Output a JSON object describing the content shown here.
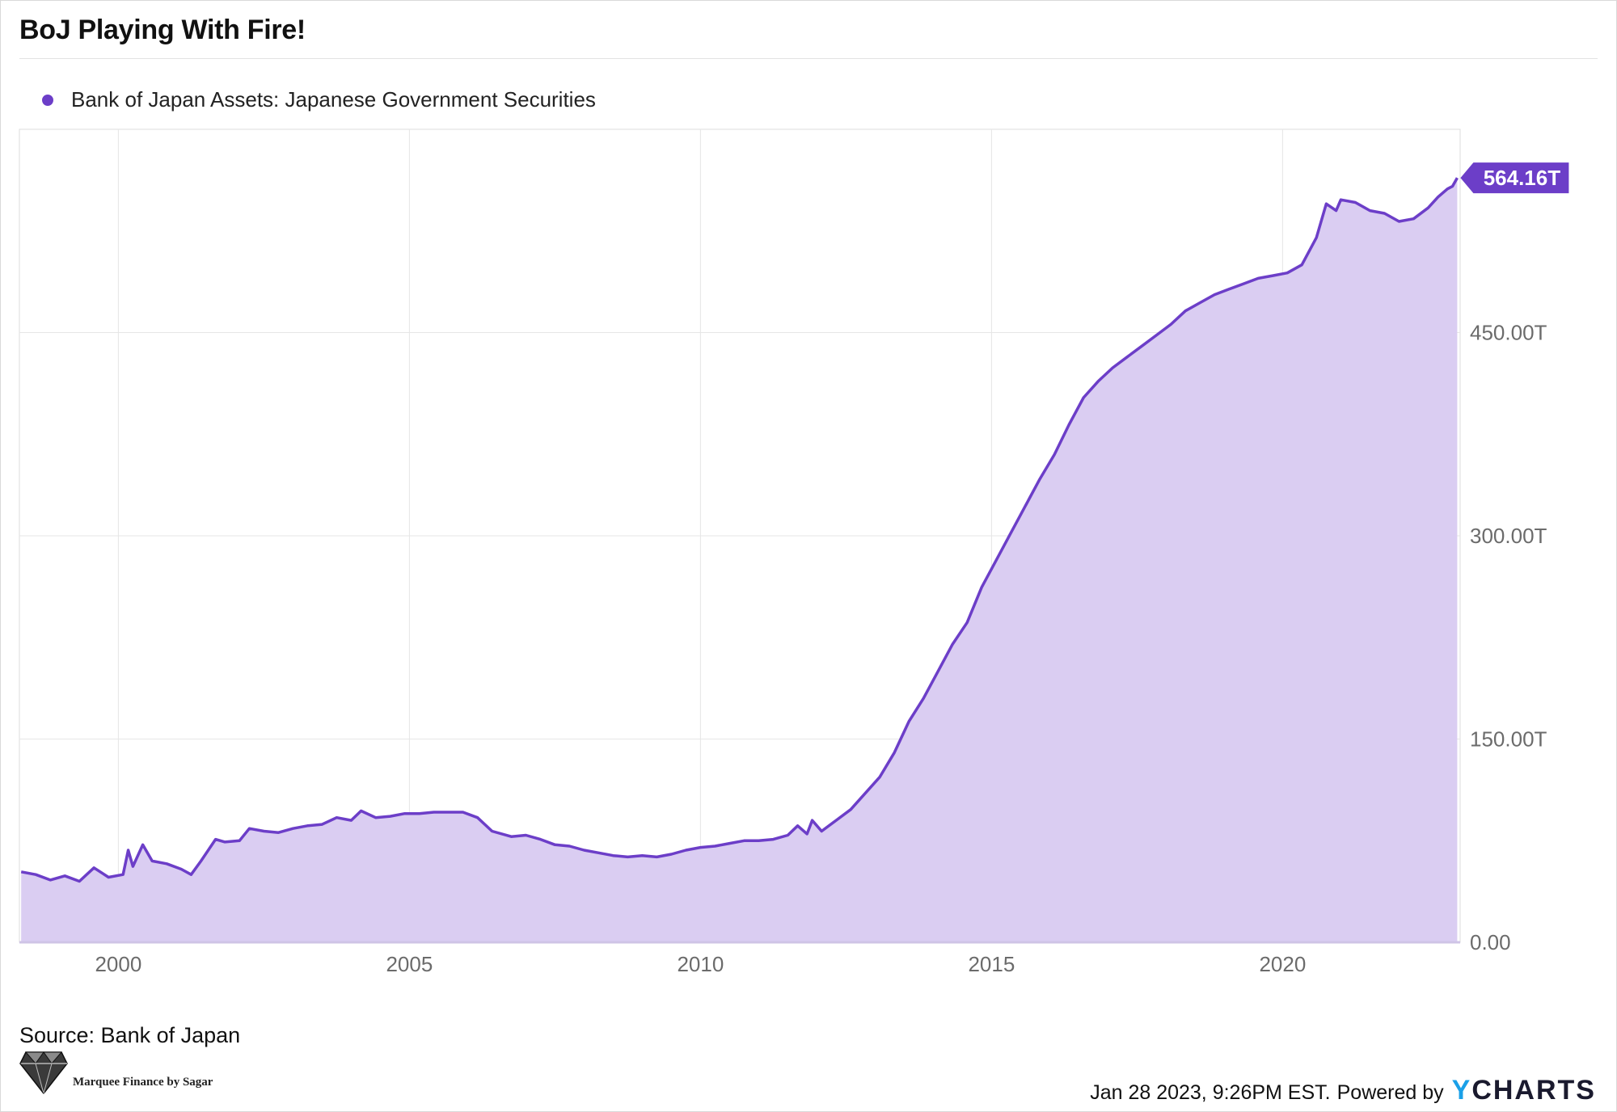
{
  "title": "BoJ Playing With Fire!",
  "source": "Source: Bank of Japan",
  "logo": {
    "text": "Marquee Finance by Sagar",
    "icon": "diamond-icon"
  },
  "footer": {
    "timestamp": "Jan 28 2023, 9:26PM EST.",
    "powered_by": "Powered by",
    "brand_y": "Y",
    "brand_rest": "CHARTS"
  },
  "colors": {
    "series": "#6c3ec8",
    "fill": "#dacdf2",
    "grid": "#e6e6e6",
    "axis_text": "#6b6b6b"
  },
  "chart_data": {
    "type": "area",
    "title": "BoJ Playing With Fire!",
    "xlabel": "",
    "ylabel": "",
    "grid": true,
    "legend_position": "top-left",
    "xlim": [
      1998.3,
      2023.05
    ],
    "ylim": [
      0,
      600
    ],
    "x_ticks": [
      2000,
      2005,
      2010,
      2015,
      2020
    ],
    "x_tick_labels": [
      "2000",
      "2005",
      "2010",
      "2015",
      "2020"
    ],
    "y_ticks": [
      0,
      150,
      300,
      450
    ],
    "y_tick_labels": [
      "0.00",
      "150.00T",
      "300.00T",
      "450.00T"
    ],
    "last_value_label": "564.16T",
    "series": [
      {
        "name": "Bank of Japan Assets: Japanese Government Securities",
        "unit": "T",
        "points": [
          [
            1998.33,
            52
          ],
          [
            1998.58,
            50
          ],
          [
            1998.83,
            46
          ],
          [
            1999.08,
            49
          ],
          [
            1999.33,
            45
          ],
          [
            1999.58,
            55
          ],
          [
            1999.83,
            48
          ],
          [
            2000.08,
            50
          ],
          [
            2000.17,
            68
          ],
          [
            2000.25,
            56
          ],
          [
            2000.42,
            72
          ],
          [
            2000.58,
            60
          ],
          [
            2000.83,
            58
          ],
          [
            2001.08,
            54
          ],
          [
            2001.25,
            50
          ],
          [
            2001.42,
            60
          ],
          [
            2001.67,
            76
          ],
          [
            2001.83,
            74
          ],
          [
            2002.08,
            75
          ],
          [
            2002.25,
            84
          ],
          [
            2002.5,
            82
          ],
          [
            2002.75,
            81
          ],
          [
            2003.0,
            84
          ],
          [
            2003.25,
            86
          ],
          [
            2003.5,
            87
          ],
          [
            2003.75,
            92
          ],
          [
            2004.0,
            90
          ],
          [
            2004.17,
            97
          ],
          [
            2004.42,
            92
          ],
          [
            2004.67,
            93
          ],
          [
            2004.92,
            95
          ],
          [
            2005.17,
            95
          ],
          [
            2005.42,
            96
          ],
          [
            2005.67,
            96
          ],
          [
            2005.92,
            96
          ],
          [
            2006.17,
            92
          ],
          [
            2006.42,
            82
          ],
          [
            2006.75,
            78
          ],
          [
            2007.0,
            79
          ],
          [
            2007.25,
            76
          ],
          [
            2007.5,
            72
          ],
          [
            2007.75,
            71
          ],
          [
            2008.0,
            68
          ],
          [
            2008.25,
            66
          ],
          [
            2008.5,
            64
          ],
          [
            2008.75,
            63
          ],
          [
            2009.0,
            64
          ],
          [
            2009.25,
            63
          ],
          [
            2009.5,
            65
          ],
          [
            2009.75,
            68
          ],
          [
            2010.0,
            70
          ],
          [
            2010.25,
            71
          ],
          [
            2010.5,
            73
          ],
          [
            2010.75,
            75
          ],
          [
            2011.0,
            75
          ],
          [
            2011.25,
            76
          ],
          [
            2011.5,
            79
          ],
          [
            2011.67,
            86
          ],
          [
            2011.83,
            80
          ],
          [
            2011.92,
            90
          ],
          [
            2012.08,
            82
          ],
          [
            2012.33,
            90
          ],
          [
            2012.58,
            98
          ],
          [
            2012.83,
            110
          ],
          [
            2013.08,
            122
          ],
          [
            2013.33,
            140
          ],
          [
            2013.58,
            163
          ],
          [
            2013.83,
            180
          ],
          [
            2014.08,
            200
          ],
          [
            2014.33,
            220
          ],
          [
            2014.58,
            236
          ],
          [
            2014.83,
            262
          ],
          [
            2015.08,
            282
          ],
          [
            2015.33,
            302
          ],
          [
            2015.58,
            322
          ],
          [
            2015.83,
            342
          ],
          [
            2016.08,
            360
          ],
          [
            2016.33,
            382
          ],
          [
            2016.58,
            402
          ],
          [
            2016.83,
            414
          ],
          [
            2017.08,
            424
          ],
          [
            2017.33,
            432
          ],
          [
            2017.58,
            440
          ],
          [
            2017.83,
            448
          ],
          [
            2018.08,
            456
          ],
          [
            2018.33,
            466
          ],
          [
            2018.58,
            472
          ],
          [
            2018.83,
            478
          ],
          [
            2019.08,
            482
          ],
          [
            2019.33,
            486
          ],
          [
            2019.58,
            490
          ],
          [
            2019.83,
            492
          ],
          [
            2020.08,
            494
          ],
          [
            2020.33,
            500
          ],
          [
            2020.58,
            520
          ],
          [
            2020.75,
            545
          ],
          [
            2020.92,
            540
          ],
          [
            2021.0,
            548
          ],
          [
            2021.25,
            546
          ],
          [
            2021.5,
            540
          ],
          [
            2021.75,
            538
          ],
          [
            2022.0,
            532
          ],
          [
            2022.25,
            534
          ],
          [
            2022.5,
            542
          ],
          [
            2022.67,
            550
          ],
          [
            2022.83,
            556
          ],
          [
            2022.92,
            558
          ],
          [
            2023.0,
            564.16
          ]
        ]
      }
    ]
  }
}
